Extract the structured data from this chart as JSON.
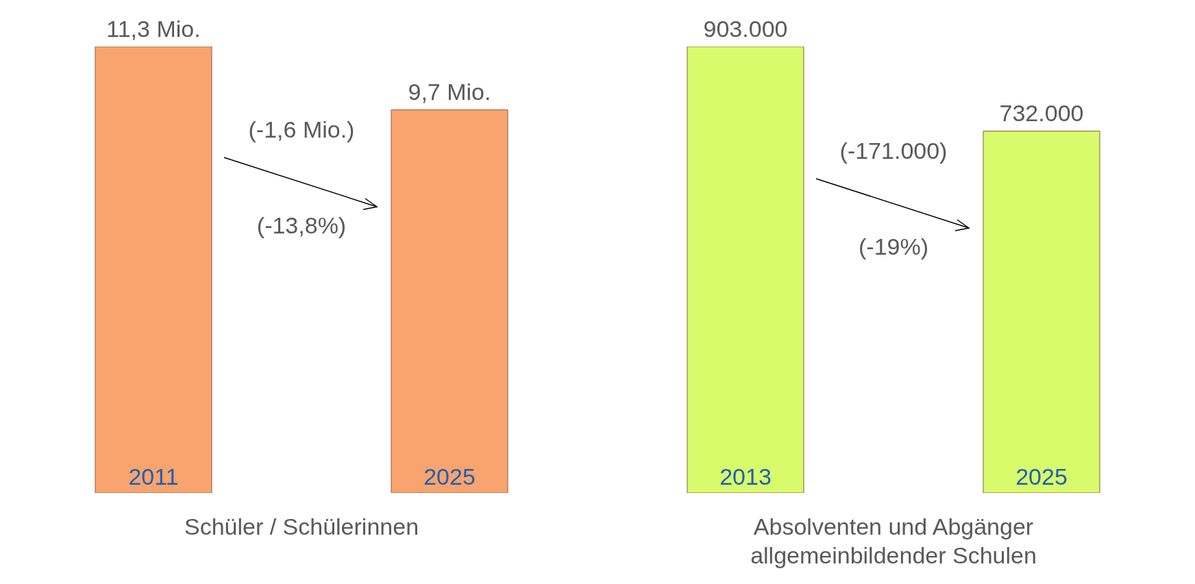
{
  "chart_data": [
    {
      "type": "bar",
      "categories": [
        "2011",
        "2025"
      ],
      "values": [
        11.3,
        9.7
      ],
      "value_labels": [
        "11,3 Mio.",
        "9,7 Mio."
      ],
      "color": "#f9a36e",
      "xlabel": "Schüler / Schülerinnen",
      "annotations": [
        "(-1,6 Mio.)",
        "(-13,8%)"
      ]
    },
    {
      "type": "bar",
      "categories": [
        "2013",
        "2025"
      ],
      "values": [
        903000,
        732000
      ],
      "value_labels": [
        "903.000",
        "732.000"
      ],
      "color": "#d8fb6c",
      "xlabel": "Absolventen und Abgänger allgemeinbildender Schulen",
      "annotations": [
        "(-171.000)",
        "(-19%)"
      ]
    }
  ]
}
